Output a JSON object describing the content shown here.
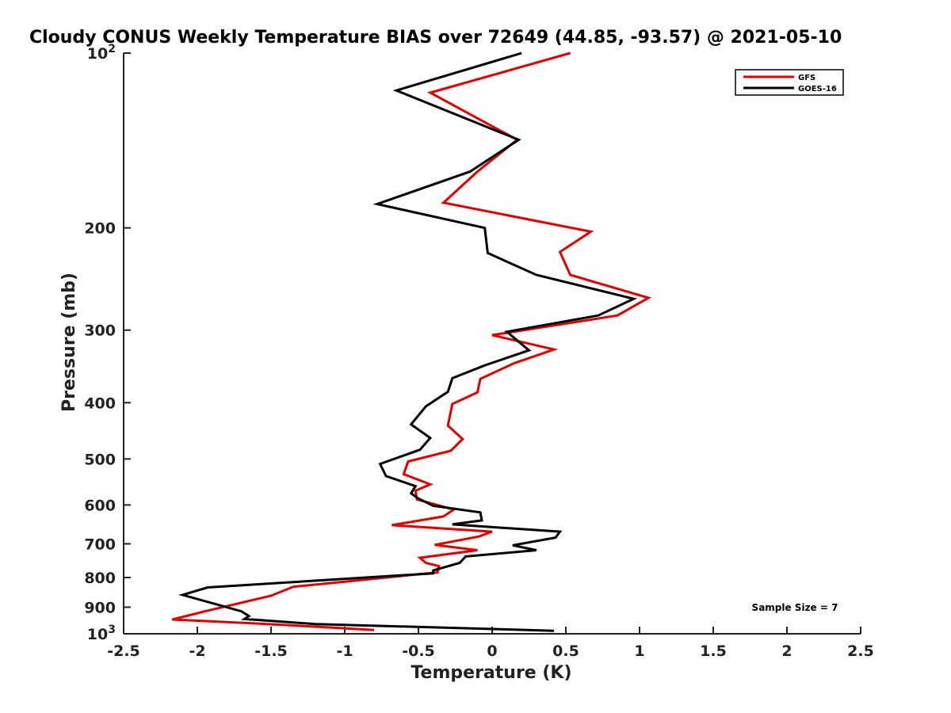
{
  "chart_data": {
    "type": "line",
    "title": "Cloudy CONUS Weekly Temperature BIAS over 72649 (44.85, -93.57) @ 2021-05-10",
    "xlabel": "Temperature (K)",
    "ylabel": "Pressure (mb)",
    "xlim": [
      -2.5,
      2.5
    ],
    "ylim": [
      1000,
      100
    ],
    "yscale": "log",
    "x_ticks": [
      -2.5,
      -2,
      -1.5,
      -1,
      -0.5,
      0,
      0.5,
      1,
      1.5,
      2,
      2.5
    ],
    "x_tick_labels": [
      "-2.5",
      "-2",
      "-1.5",
      "-1",
      "-0.5",
      "0",
      "0.5",
      "1",
      "1.5",
      "2",
      "2.5"
    ],
    "y_ticks": [
      {
        "value": 100,
        "label": "10",
        "sup": "2"
      },
      {
        "value": 200,
        "label": "200",
        "sup": ""
      },
      {
        "value": 300,
        "label": "300",
        "sup": ""
      },
      {
        "value": 400,
        "label": "400",
        "sup": ""
      },
      {
        "value": 500,
        "label": "500",
        "sup": ""
      },
      {
        "value": 600,
        "label": "600",
        "sup": ""
      },
      {
        "value": 700,
        "label": "700",
        "sup": ""
      },
      {
        "value": 800,
        "label": "800",
        "sup": ""
      },
      {
        "value": 900,
        "label": "900",
        "sup": ""
      },
      {
        "value": 1000,
        "label": "10",
        "sup": "3"
      }
    ],
    "grid": false,
    "legend_position": "top-right",
    "series": [
      {
        "name": "GFS",
        "color": "#e00000",
        "points": [
          {
            "x": 0.53,
            "y": 100
          },
          {
            "x": -0.42,
            "y": 117
          },
          {
            "x": 0.17,
            "y": 141
          },
          {
            "x": -0.1,
            "y": 160
          },
          {
            "x": -0.33,
            "y": 181
          },
          {
            "x": 0.67,
            "y": 203
          },
          {
            "x": 0.46,
            "y": 220
          },
          {
            "x": 0.53,
            "y": 241
          },
          {
            "x": 1.06,
            "y": 264
          },
          {
            "x": 0.85,
            "y": 283
          },
          {
            "x": 0.0,
            "y": 306
          },
          {
            "x": 0.42,
            "y": 324
          },
          {
            "x": 0.15,
            "y": 342
          },
          {
            "x": -0.08,
            "y": 364
          },
          {
            "x": -0.1,
            "y": 384
          },
          {
            "x": -0.27,
            "y": 402
          },
          {
            "x": -0.3,
            "y": 438
          },
          {
            "x": -0.2,
            "y": 462
          },
          {
            "x": -0.28,
            "y": 484
          },
          {
            "x": -0.57,
            "y": 505
          },
          {
            "x": -0.6,
            "y": 531
          },
          {
            "x": -0.42,
            "y": 553
          },
          {
            "x": -0.52,
            "y": 567
          },
          {
            "x": -0.51,
            "y": 587
          },
          {
            "x": -0.26,
            "y": 611
          },
          {
            "x": -0.33,
            "y": 628
          },
          {
            "x": -0.68,
            "y": 650
          },
          {
            "x": 0.0,
            "y": 667
          },
          {
            "x": -0.09,
            "y": 680
          },
          {
            "x": -0.39,
            "y": 703
          },
          {
            "x": -0.1,
            "y": 718
          },
          {
            "x": -0.49,
            "y": 740
          },
          {
            "x": -0.45,
            "y": 755
          },
          {
            "x": -0.36,
            "y": 765
          },
          {
            "x": -0.37,
            "y": 784
          },
          {
            "x": -1.35,
            "y": 830
          },
          {
            "x": -1.5,
            "y": 860
          },
          {
            "x": -1.65,
            "y": 878
          },
          {
            "x": -1.95,
            "y": 915
          },
          {
            "x": -2.17,
            "y": 945
          },
          {
            "x": -1.6,
            "y": 960
          },
          {
            "x": -1.2,
            "y": 972
          },
          {
            "x": -0.8,
            "y": 985
          }
        ]
      },
      {
        "name": "GOES-16",
        "color": "#000000",
        "points": [
          {
            "x": 0.2,
            "y": 100
          },
          {
            "x": -0.65,
            "y": 116
          },
          {
            "x": 0.18,
            "y": 141
          },
          {
            "x": -0.15,
            "y": 160
          },
          {
            "x": -0.78,
            "y": 182
          },
          {
            "x": -0.05,
            "y": 200
          },
          {
            "x": -0.03,
            "y": 221
          },
          {
            "x": 0.3,
            "y": 241
          },
          {
            "x": 0.96,
            "y": 265
          },
          {
            "x": 0.72,
            "y": 283
          },
          {
            "x": 0.1,
            "y": 302
          },
          {
            "x": 0.25,
            "y": 325
          },
          {
            "x": -0.05,
            "y": 345
          },
          {
            "x": -0.27,
            "y": 363
          },
          {
            "x": -0.3,
            "y": 383
          },
          {
            "x": -0.45,
            "y": 406
          },
          {
            "x": -0.55,
            "y": 436
          },
          {
            "x": -0.42,
            "y": 460
          },
          {
            "x": -0.49,
            "y": 482
          },
          {
            "x": -0.76,
            "y": 510
          },
          {
            "x": -0.72,
            "y": 535
          },
          {
            "x": -0.52,
            "y": 557
          },
          {
            "x": -0.55,
            "y": 573
          },
          {
            "x": -0.5,
            "y": 585
          },
          {
            "x": -0.4,
            "y": 602
          },
          {
            "x": -0.08,
            "y": 618
          },
          {
            "x": -0.07,
            "y": 638
          },
          {
            "x": -0.27,
            "y": 648
          },
          {
            "x": 0.46,
            "y": 667
          },
          {
            "x": 0.43,
            "y": 683
          },
          {
            "x": 0.14,
            "y": 704
          },
          {
            "x": 0.3,
            "y": 718
          },
          {
            "x": -0.18,
            "y": 736
          },
          {
            "x": -0.22,
            "y": 755
          },
          {
            "x": -0.4,
            "y": 778
          },
          {
            "x": -0.4,
            "y": 787
          },
          {
            "x": -1.93,
            "y": 832
          },
          {
            "x": -2.1,
            "y": 857
          },
          {
            "x": -1.7,
            "y": 915
          },
          {
            "x": -1.65,
            "y": 932
          },
          {
            "x": -1.68,
            "y": 943
          },
          {
            "x": -1.2,
            "y": 962
          },
          {
            "x": 0.42,
            "y": 988
          }
        ]
      }
    ],
    "annotations": [
      {
        "text": "Sample Size = 7",
        "x": 2.0,
        "y": 900
      }
    ]
  }
}
